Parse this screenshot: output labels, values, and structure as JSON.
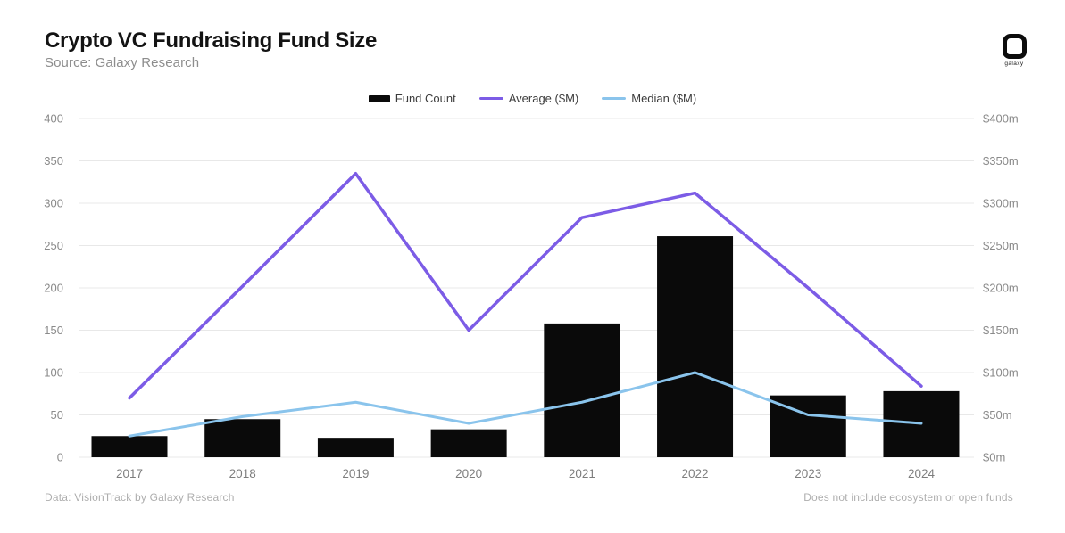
{
  "header": {
    "title": "Crypto VC Fundraising Fund Size",
    "subtitle": "Source: Galaxy Research",
    "logo_text": "galaxy"
  },
  "legend": {
    "items": [
      {
        "label": "Fund Count",
        "swatch": "bar",
        "color": "#0a0a0a"
      },
      {
        "label": "Average ($M)",
        "swatch": "line",
        "color": "#7c5ce6"
      },
      {
        "label": "Median ($M)",
        "swatch": "line",
        "color": "#8ac4ec"
      }
    ]
  },
  "footer": {
    "left": "Data: VisionTrack by Galaxy Research",
    "right": "Does not include ecosystem or open funds"
  },
  "chart_data": {
    "type": "combo",
    "title": "Crypto VC Fundraising Fund Size",
    "categories": [
      "2017",
      "2018",
      "2019",
      "2020",
      "2021",
      "2022",
      "2023",
      "2024"
    ],
    "series": [
      {
        "name": "Fund Count",
        "type": "bar",
        "axis": "left",
        "color": "#0a0a0a",
        "values": [
          25,
          45,
          23,
          33,
          158,
          261,
          73,
          78
        ]
      },
      {
        "name": "Average ($M)",
        "type": "line",
        "axis": "right",
        "color": "#7c5ce6",
        "values": [
          70,
          202,
          335,
          150,
          283,
          312,
          200,
          84
        ]
      },
      {
        "name": "Median ($M)",
        "type": "line",
        "axis": "right",
        "color": "#8ac4ec",
        "values": [
          25,
          48,
          65,
          40,
          65,
          100,
          50,
          40
        ]
      }
    ],
    "left_axis": {
      "min": 0,
      "max": 400,
      "tick_step": 50,
      "tick_labels": [
        "0",
        "50",
        "100",
        "150",
        "200",
        "250",
        "300",
        "350",
        "400"
      ]
    },
    "right_axis": {
      "min": 0,
      "max": 400,
      "tick_step": 50,
      "tick_labels": [
        "$0m",
        "$50m",
        "$100m",
        "$150m",
        "$200m",
        "$250m",
        "$300m",
        "$350m",
        "$400m"
      ]
    },
    "grid": true,
    "legend_position": "top",
    "ylim": [
      0,
      400
    ]
  }
}
